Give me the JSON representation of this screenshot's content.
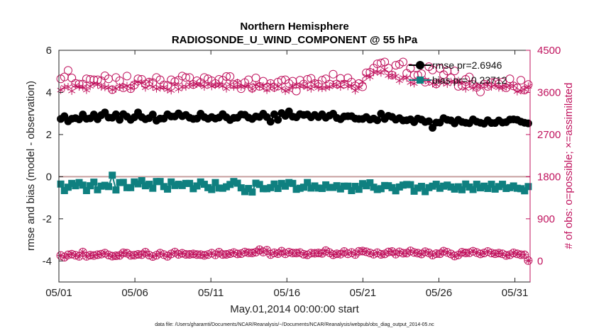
{
  "chart_data": {
    "type": "line",
    "title": "Northern Hemisphere",
    "subtitle": "RADIOSONDE_U_WIND_COMPONENT @ 55 hPa",
    "xlabel": "May.01,2014 00:00:00 start",
    "ylabel": "rmse and bias (model - observation)",
    "ylabel_right": "# of obs: o=possible; ×=assimilated",
    "xlim": [
      0,
      31
    ],
    "ylim": [
      -5,
      6
    ],
    "ylim_right": [
      -450,
      4500
    ],
    "x_ticks": [
      0,
      5,
      10,
      15,
      20,
      25,
      30
    ],
    "x_tick_labels": [
      "05/01",
      "05/06",
      "05/11",
      "05/16",
      "05/21",
      "05/26",
      "05/31"
    ],
    "y_ticks": [
      -4,
      -2,
      0,
      2,
      4,
      6
    ],
    "y_tick_labels": [
      "-4",
      "-2",
      "0",
      "2",
      "4",
      "6"
    ],
    "y_ticks_right": [
      0,
      900,
      1800,
      2700,
      3600,
      4500
    ],
    "y_tick_labels_right": [
      "0",
      "900",
      "1800",
      "2700",
      "3600",
      "4500"
    ],
    "legend_position": "top-right",
    "colors": {
      "rmse": "#000000",
      "bias": "#0f8080",
      "obs": "#c0135e",
      "zero_line": "#c8a0a0",
      "axis": "#222222"
    },
    "footnote": "data file: /Users/gharamti/Documents/NCAR/Reanalysis/~/Documents/NCAR/Reanalysis/webpub/obs_diag_output_2014-05.nc",
    "series": [
      {
        "name": "rmse pr=2.6946",
        "label": "rmse pr=2.6946",
        "marker": "filled-circle",
        "axis": "left",
        "values": [
          2.74,
          2.87,
          2.63,
          2.75,
          2.78,
          2.72,
          2.95,
          2.75,
          2.77,
          2.95,
          2.73,
          2.92,
          3.05,
          2.81,
          2.8,
          2.96,
          2.7,
          2.97,
          2.85,
          2.7,
          2.82,
          3.05,
          2.83,
          2.73,
          2.78,
          2.95,
          2.66,
          2.76,
          2.76,
          2.96,
          2.86,
          2.86,
          3.0,
          2.87,
          2.93,
          2.8,
          2.74,
          2.76,
          2.99,
          2.83,
          2.75,
          2.83,
          2.76,
          2.81,
          2.97,
          2.82,
          2.69,
          2.79,
          2.8,
          2.95,
          2.94,
          2.81,
          2.74,
          2.86,
          2.84,
          2.99,
          2.83,
          2.61,
          2.96,
          2.7,
          3.02,
          2.89,
          3.1,
          2.85,
          2.82,
          2.97,
          2.93,
          2.95,
          2.82,
          2.93,
          2.83,
          2.96,
          2.8,
          2.9,
          2.99,
          2.79,
          2.73,
          2.86,
          2.87,
          2.87,
          2.76,
          2.74,
          2.74,
          2.83,
          2.71,
          2.76,
          2.68,
          2.99,
          2.74,
          2.89,
          2.84,
          2.71,
          2.78,
          2.67,
          2.68,
          2.72,
          2.59,
          2.76,
          2.71,
          2.6,
          2.63,
          2.32,
          2.57,
          2.57,
          2.78,
          2.7,
          2.67,
          2.53,
          2.7,
          2.6,
          2.56,
          2.54,
          2.72,
          2.61,
          2.56,
          2.52,
          2.68,
          2.55,
          2.55,
          2.67,
          2.57,
          2.59,
          2.71,
          2.72,
          2.7,
          2.61,
          2.56,
          2.53
        ]
      },
      {
        "name": "bias pr=-0.23712",
        "label": "bias pr=-0.23712",
        "marker": "filled-square",
        "axis": "left",
        "values": [
          -0.35,
          -0.66,
          -0.5,
          -0.32,
          -0.43,
          -0.28,
          -0.4,
          -0.66,
          -0.43,
          -0.26,
          -0.62,
          -0.45,
          -0.41,
          -0.47,
          0.07,
          -0.63,
          -0.28,
          -0.27,
          -0.52,
          -0.52,
          -0.25,
          -0.34,
          -0.19,
          -0.43,
          -0.36,
          -0.55,
          -0.23,
          -0.23,
          -0.47,
          -0.59,
          -0.25,
          -0.42,
          -0.36,
          -0.42,
          -0.32,
          -0.32,
          -0.57,
          -0.44,
          -0.25,
          -0.36,
          -0.52,
          -0.61,
          -0.28,
          -0.54,
          -0.55,
          -0.48,
          -0.37,
          -0.23,
          -0.31,
          -0.53,
          -0.71,
          -0.56,
          -0.73,
          -0.31,
          -0.37,
          -0.57,
          -0.57,
          -0.52,
          -0.35,
          -0.56,
          -0.32,
          -0.45,
          -0.28,
          -0.32,
          -0.6,
          -0.55,
          -0.5,
          -0.28,
          -0.54,
          -0.44,
          -0.54,
          -0.56,
          -0.39,
          -0.51,
          -0.51,
          -0.43,
          -0.58,
          -0.45,
          -0.45,
          -0.66,
          -0.46,
          -0.6,
          -0.33,
          -0.43,
          -0.29,
          -0.5,
          -0.61,
          -0.57,
          -0.42,
          -0.43,
          -0.52,
          -0.67,
          -0.49,
          -0.4,
          -0.37,
          -0.38,
          -0.69,
          -0.54,
          -0.46,
          -0.71,
          -0.52,
          -0.45,
          -0.36,
          -0.55,
          -0.45,
          -0.4,
          -0.49,
          -0.59,
          -0.48,
          -0.62,
          -0.35,
          -0.49,
          -0.61,
          -0.36,
          -0.53,
          -0.45,
          -0.56,
          -0.36,
          -0.59,
          -0.47,
          -0.36,
          -0.56,
          -0.52,
          -0.44,
          -0.55,
          -0.57,
          -0.67,
          -0.47
        ]
      },
      {
        "name": "possible",
        "label": "o=possible",
        "marker": "open-circle",
        "axis": "right",
        "values": [
          3890,
          3930,
          4070,
          3910,
          3795,
          3780,
          3780,
          3890,
          3880,
          3870,
          3870,
          3850,
          3955,
          3890,
          3660,
          3920,
          3850,
          3700,
          3950,
          3680,
          3760,
          3890,
          3880,
          3780,
          3820,
          3810,
          3920,
          3870,
          3760,
          3750,
          3870,
          3830,
          3860,
          3950,
          3920,
          3920,
          3770,
          3850,
          3810,
          3920,
          3890,
          3850,
          3790,
          3880,
          3860,
          3940,
          3940,
          3770,
          3790,
          3680,
          3810,
          3870,
          3690,
          3910,
          3730,
          3840,
          3710,
          3790,
          3710,
          3820,
          3860,
          3870,
          3790,
          3840,
          3630,
          3860,
          3780,
          3880,
          3900,
          3790,
          3780,
          3860,
          3890,
          3780,
          3990,
          3780,
          3900,
          3780,
          3910,
          3820,
          3740,
          3790,
          3720,
          4020,
          4030,
          4120,
          4210,
          4230,
          4250,
          4120,
          3970,
          4180,
          4200,
          4250,
          4010,
          4120,
          3970,
          3970,
          4000,
          3820,
          4150,
          4080,
          3780,
          4110,
          3980,
          4060,
          3910,
          4060,
          3730,
          3750,
          3880,
          3930,
          3770,
          3710,
          3610,
          3780,
          3730,
          3810,
          3820,
          3780,
          3820,
          3700,
          3890,
          3740,
          3700,
          3860,
          3650,
          3770
        ]
      },
      {
        "name": "assimilated",
        "label": "×=assimilated",
        "marker": "asterisk",
        "axis": "right",
        "values": [
          3650,
          3710,
          3720,
          3630,
          3750,
          3720,
          3720,
          3650,
          3730,
          3790,
          3770,
          3720,
          3710,
          3700,
          3660,
          3680,
          3720,
          3720,
          3740,
          3690,
          3790,
          3830,
          3800,
          3700,
          3830,
          3720,
          3680,
          3700,
          3710,
          3660,
          3640,
          3770,
          3670,
          3720,
          3720,
          3770,
          3760,
          3780,
          3780,
          3720,
          3770,
          3730,
          3760,
          3760,
          3740,
          3680,
          3770,
          3720,
          3810,
          3720,
          3730,
          3740,
          3670,
          3760,
          3730,
          3740,
          3650,
          3770,
          3690,
          3730,
          3690,
          3630,
          3650,
          3720,
          3770,
          3730,
          3740,
          3710,
          3680,
          3770,
          3700,
          3690,
          3700,
          3720,
          3770,
          3760,
          3720,
          3820,
          3730,
          3740,
          3640,
          3720,
          3830,
          3950,
          3930,
          4030,
          4040,
          4020,
          4090,
          3960,
          3960,
          3950,
          3850,
          3920,
          3910,
          3810,
          3790,
          3880,
          3860,
          3860,
          3830,
          3790,
          3770,
          3850,
          3810,
          3780,
          3830,
          3830,
          3850,
          3790,
          3680,
          3780,
          3700,
          3740,
          3740,
          3780,
          3770,
          3720,
          3770,
          3700,
          3700,
          3720,
          3740,
          3740,
          3620,
          3640,
          3660,
          3730
        ]
      },
      {
        "name": "possible-low",
        "label": "o=possible",
        "marker": "open-circle-cross",
        "axis": "right",
        "values": [
          115,
          80,
          130,
          145,
          122,
          98,
          189,
          98,
          123,
          115,
          132,
          145,
          167,
          127,
          102,
          110,
          118,
          174,
          165,
          120,
          124,
          140,
          135,
          188,
          126,
          95,
          122,
          167,
          136,
          99,
          150,
          190,
          141,
          163,
          141,
          140,
          149,
          136,
          134,
          120,
          136,
          166,
          130,
          187,
          139,
          141,
          156,
          178,
          150,
          156,
          190,
          174,
          170,
          188,
          241,
          189,
          230,
          137,
          174,
          155,
          208,
          151,
          188,
          168,
          169,
          179,
          142,
          131,
          166,
          164,
          171,
          161,
          220,
          178,
          133,
          152,
          145,
          200,
          151,
          181,
          138,
          204,
          211,
          196,
          170,
          144,
          176,
          140,
          150,
          192,
          201,
          145,
          194,
          165,
          166,
          214,
          181,
          166,
          148,
          198,
          173,
          125,
          155,
          154,
          208,
          183,
          150,
          105,
          128,
          186,
          171,
          175,
          206,
          180,
          150,
          169,
          200,
          168,
          153,
          166,
          152,
          117,
          130,
          172,
          152,
          132,
          130,
          7
        ]
      }
    ]
  }
}
